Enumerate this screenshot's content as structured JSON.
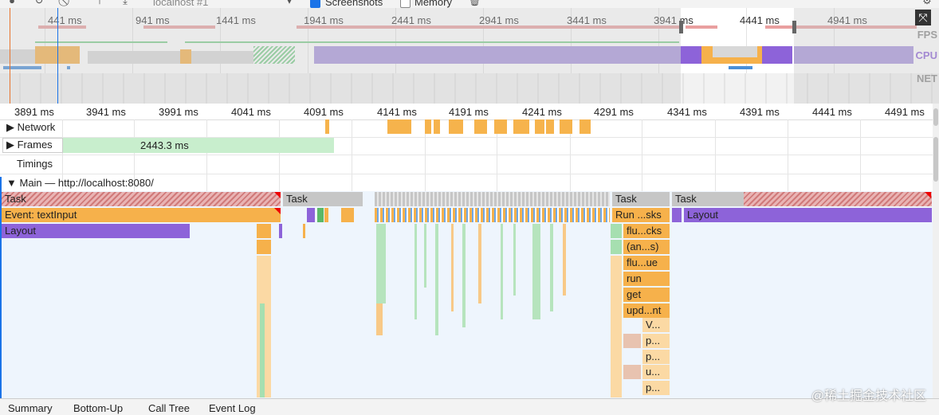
{
  "toolbar": {
    "target": "localhost #1",
    "screenshots_label": "Screenshots",
    "screenshots_checked": true,
    "memory_label": "Memory",
    "memory_checked": false
  },
  "overview": {
    "ticks": [
      "441 ms",
      "941 ms",
      "1441 ms",
      "1941 ms",
      "2441 ms",
      "2941 ms",
      "3441 ms",
      "3941 ms",
      "4441 ms",
      "4941 ms"
    ],
    "lanes": [
      "FPS",
      "CPU",
      "NET"
    ]
  },
  "ruler": {
    "ticks": [
      "3891 ms",
      "3941 ms",
      "3991 ms",
      "4041 ms",
      "4091 ms",
      "4141 ms",
      "4191 ms",
      "4241 ms",
      "4291 ms",
      "4341 ms",
      "4391 ms",
      "4441 ms",
      "4491 ms"
    ]
  },
  "tracks": {
    "network": "Network",
    "frames": "Frames",
    "frame_duration": "2443.3 ms",
    "timings": "Timings",
    "main": "Main — http://localhost:8080/"
  },
  "flame": {
    "task_1": "Task",
    "task_2": "Task",
    "task_3": "Task",
    "task_4": "Task",
    "event_text_input": "Event: textInput",
    "run_tasks": "Run ...sks",
    "layout_1": "Layout",
    "layout_2": "Layout",
    "stack": [
      "flu...cks",
      "(an...s)",
      "flu...ue",
      "run",
      "get",
      "upd...nt",
      "V...",
      "p...",
      "p...",
      "u...",
      "p..."
    ]
  },
  "bottom_tabs": [
    "Summary",
    "Bottom-Up",
    "Call Tree",
    "Event Log"
  ],
  "watermark": "@稀土掘金技术社区",
  "colors": {
    "task": "#c6c6c6",
    "scripting": "#f6b14b",
    "rendering": "#8d63d9",
    "painting": "#7fcf8f",
    "network": "#f6b34c"
  }
}
